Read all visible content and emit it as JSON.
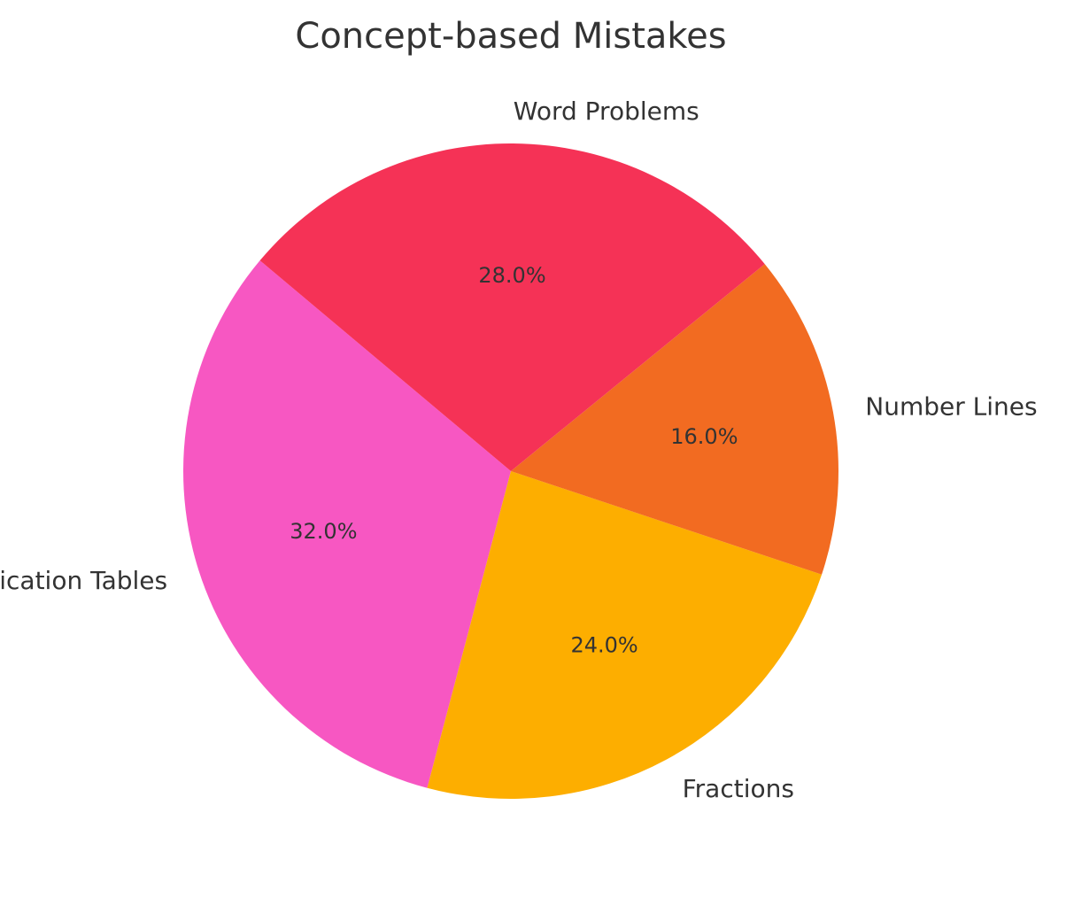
{
  "chart_data": {
    "type": "pie",
    "title": "Concept-based Mistakes",
    "start_angle_deg": 140,
    "direction": "counterclockwise",
    "slices": [
      {
        "label": "Multiplication Tables",
        "value": 32.0,
        "pct_label": "32.0%",
        "color": "#f757c2"
      },
      {
        "label": "Fractions",
        "value": 24.0,
        "pct_label": "24.0%",
        "color": "#fdae00"
      },
      {
        "label": "Number Lines",
        "value": 16.0,
        "pct_label": "16.0%",
        "color": "#f26b21"
      },
      {
        "label": "Word Problems",
        "value": 28.0,
        "pct_label": "28.0%",
        "color": "#f53256"
      }
    ],
    "legend": "none"
  }
}
